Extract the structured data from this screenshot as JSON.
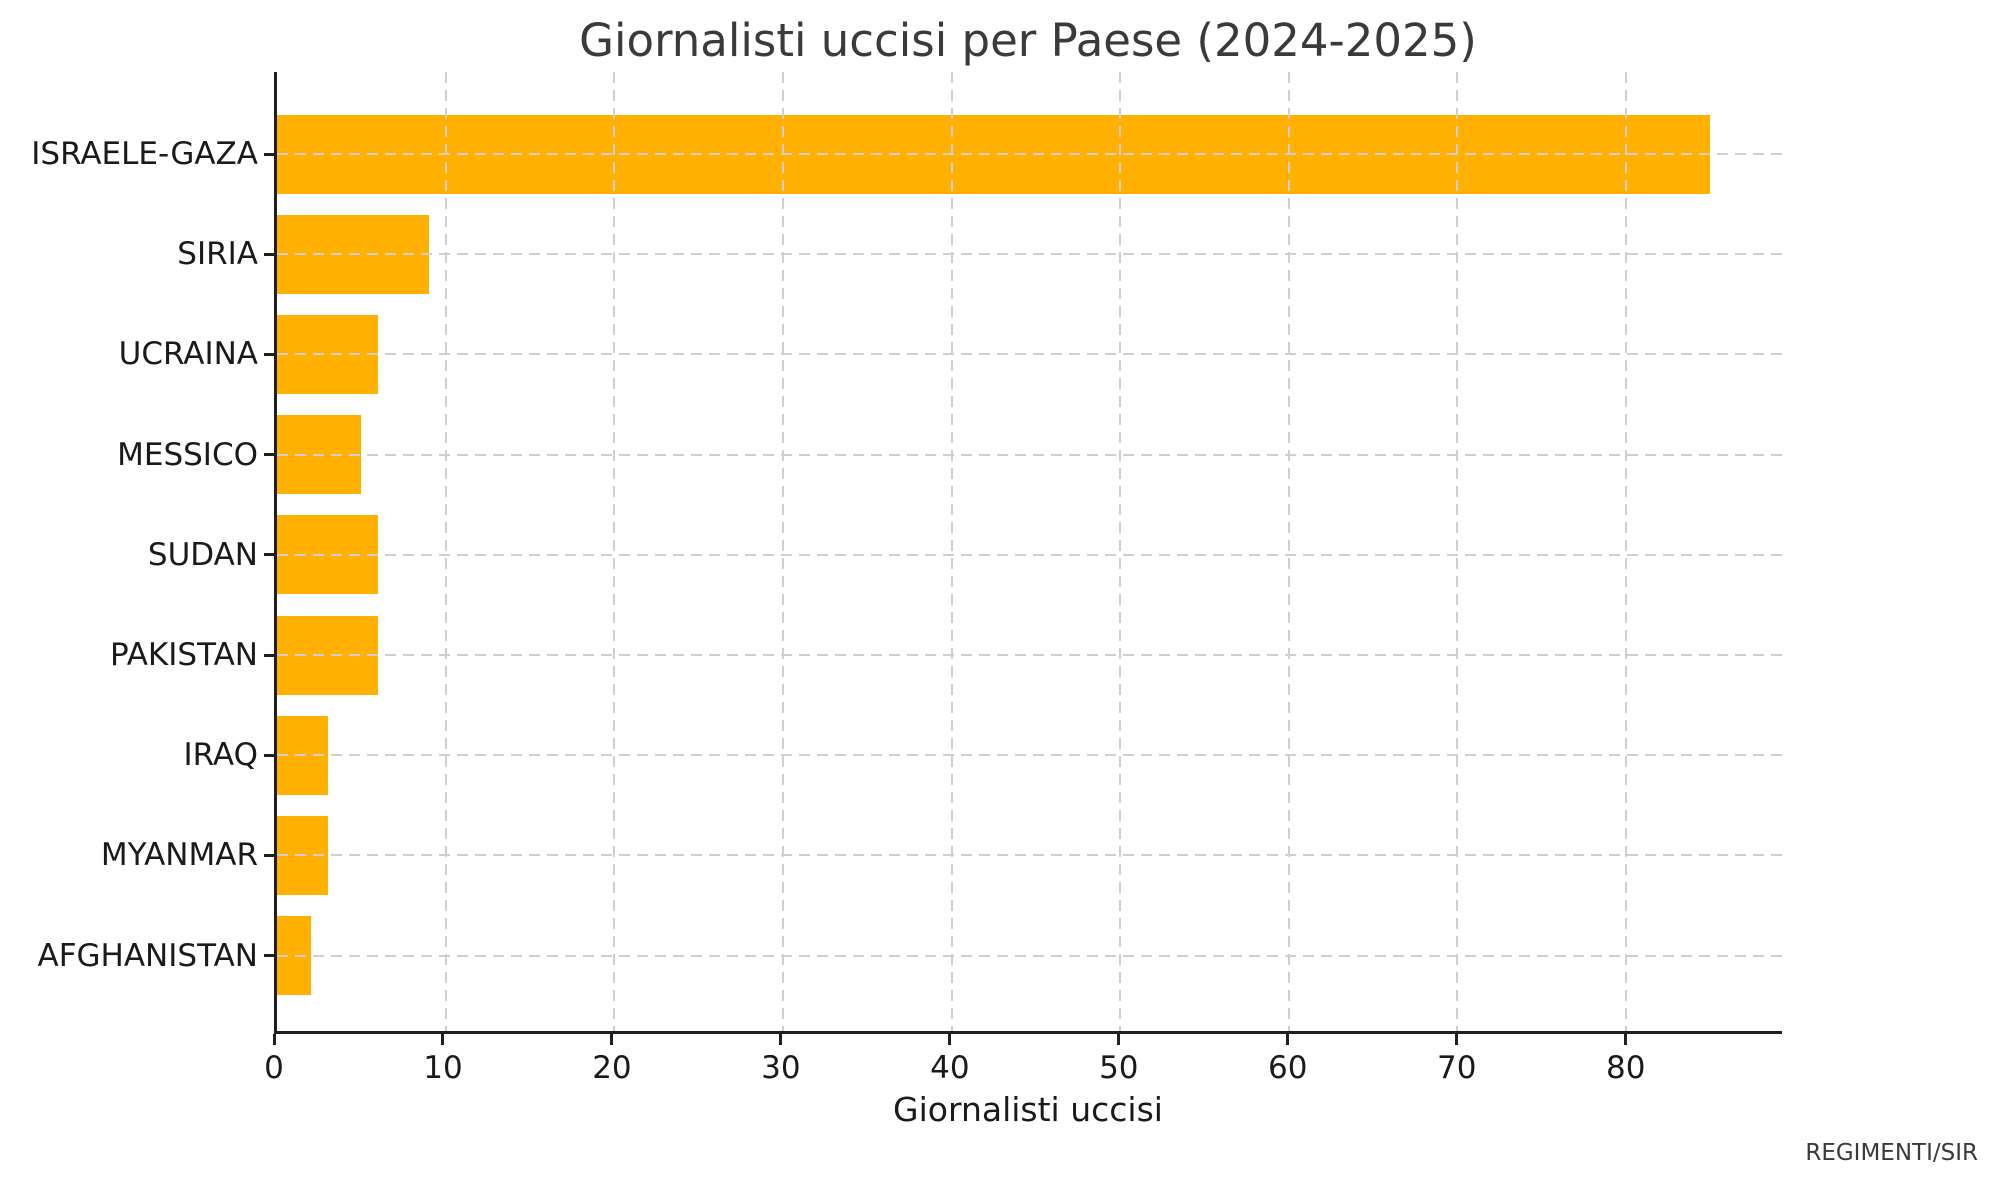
{
  "title": "Giornalisti uccisi per Paese (2024-2025)",
  "credit": "REGIMENTI/SIR",
  "colors": {
    "bar": "#FFB000",
    "grid": "#cfcfcf",
    "axis": "#1f1f1f",
    "title_text": "#3a3a3a",
    "tick_text": "#1a1a1a",
    "background": "#ffffff"
  },
  "chart_data": {
    "type": "bar",
    "orientation": "horizontal",
    "title": "Giornalisti uccisi per Paese (2024-2025)",
    "xlabel": "Giornalisti uccisi",
    "ylabel": "",
    "categories": [
      "ISRAELE-GAZA",
      "SIRIA",
      "UCRAINA",
      "MESSICO",
      "SUDAN",
      "PAKISTAN",
      "IRAQ",
      "MYANMAR",
      "AFGHANISTAN"
    ],
    "values": [
      85,
      9,
      6,
      5,
      6,
      6,
      3,
      3,
      2
    ],
    "xticks": [
      0,
      10,
      20,
      30,
      40,
      50,
      60,
      70,
      80
    ],
    "xlim": [
      0,
      89.25
    ],
    "grid": "dashed, x and y, drawn over bars",
    "legend": "none",
    "bar_color": "#FFB000",
    "source_note": "REGIMENTI/SIR"
  }
}
